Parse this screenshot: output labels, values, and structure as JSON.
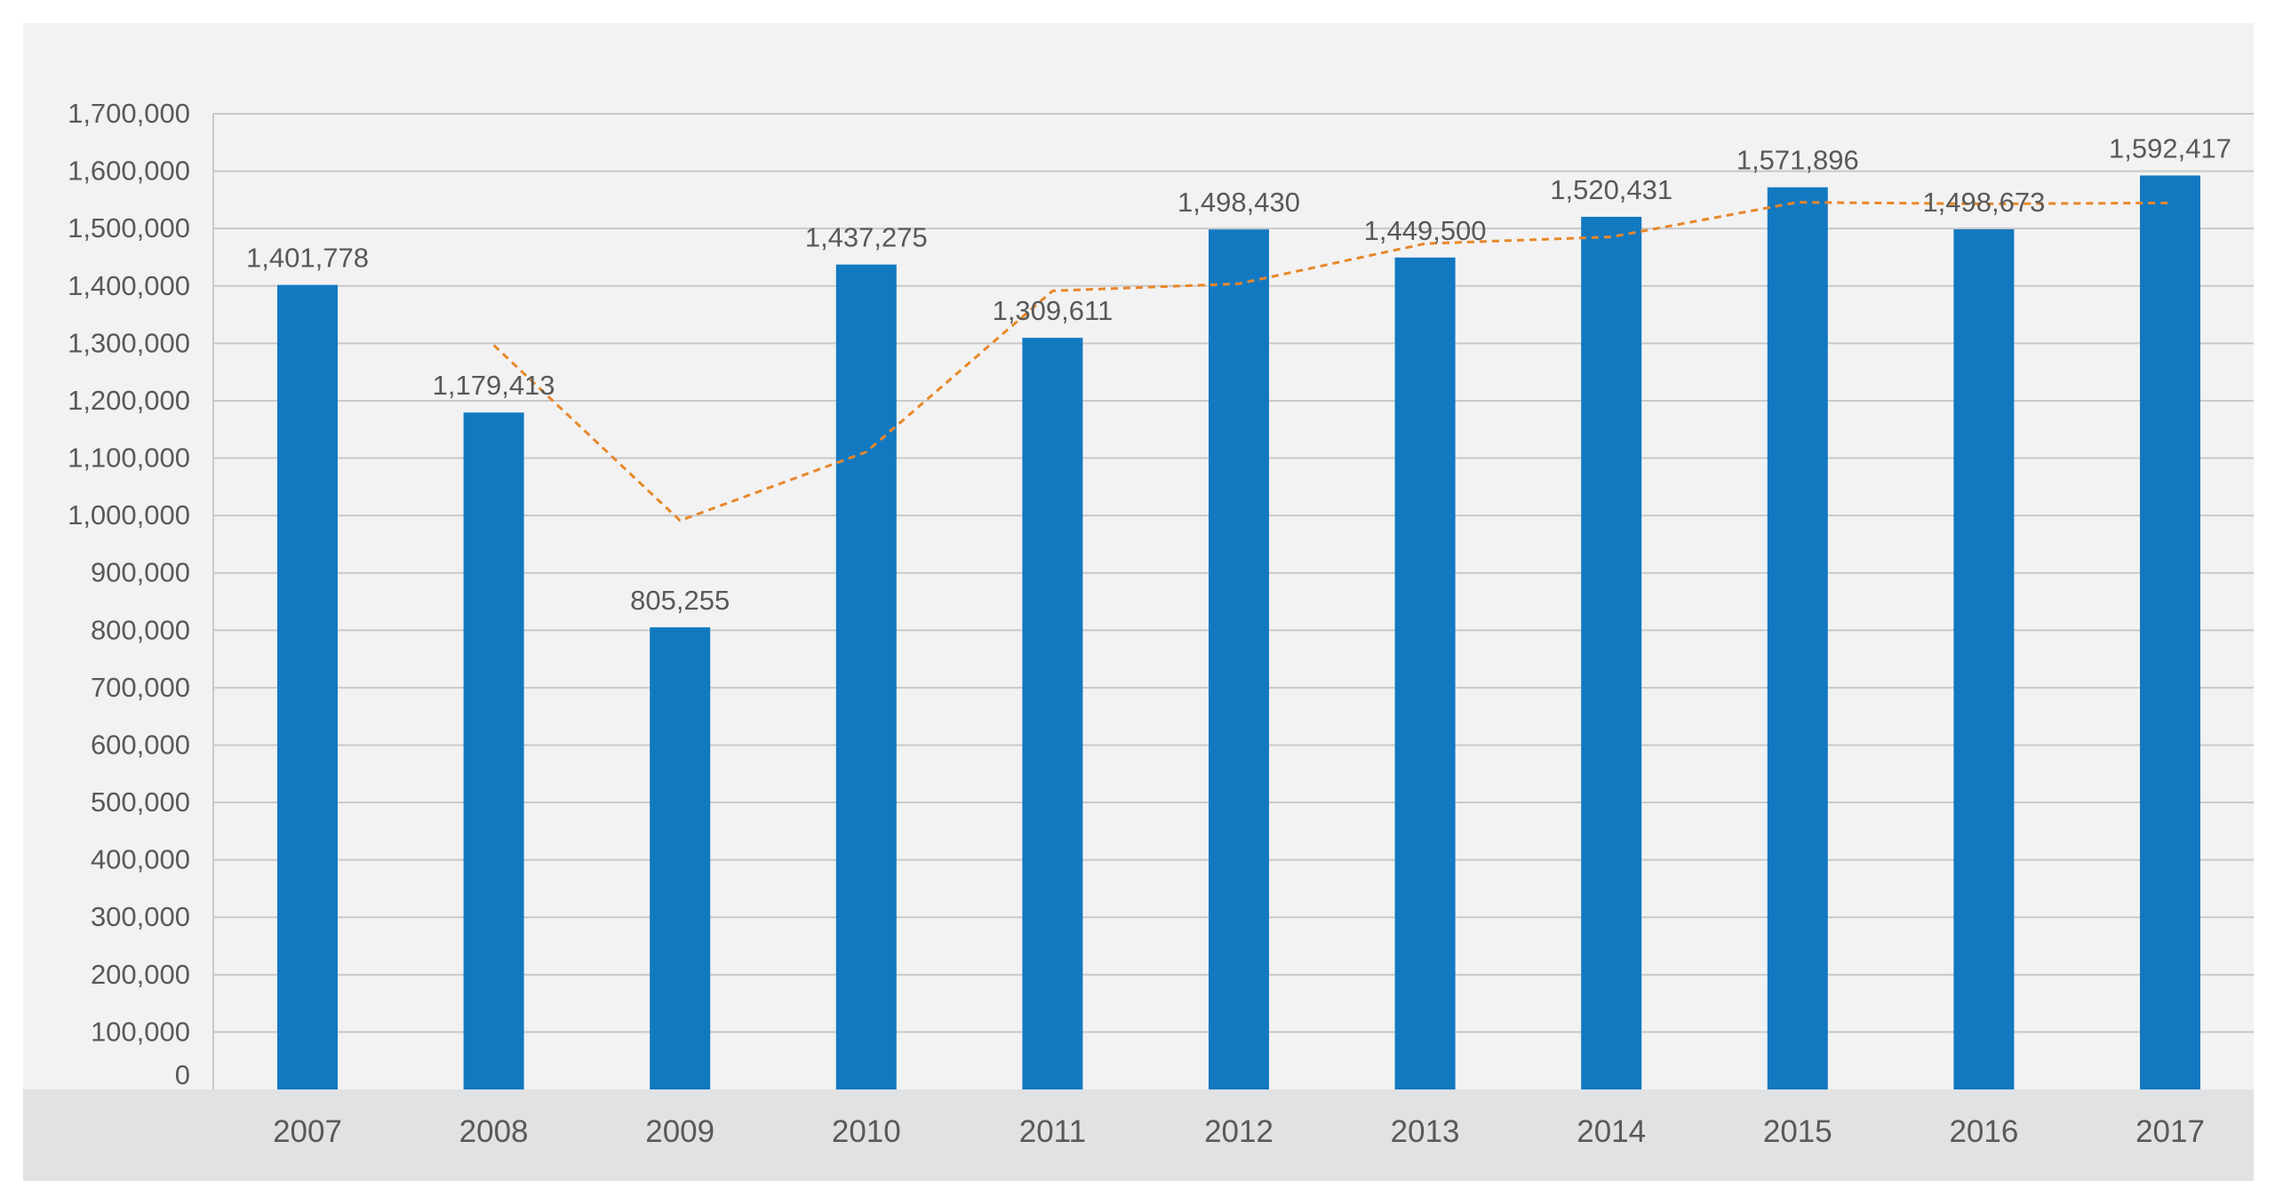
{
  "chart_data": {
    "type": "bar",
    "categories": [
      "2007",
      "2008",
      "2009",
      "2010",
      "2011",
      "2012",
      "2013",
      "2014",
      "2015",
      "2016",
      "2017"
    ],
    "series": [
      {
        "type": "bar",
        "values": [
          1401778,
          1179413,
          805255,
          1437275,
          1309611,
          1498430,
          1449500,
          1520431,
          1571896,
          1498673,
          1592417
        ],
        "data_labels": [
          "1,401,778",
          "1,179,413",
          "805,255",
          "1,437,275",
          "1,309,611",
          "1,498,430",
          "1,449,500",
          "1,520,431",
          "1,571,896",
          "1,498,673",
          "1,592,417"
        ],
        "color": "#1279c1"
      },
      {
        "type": "line",
        "style": "dashed",
        "values": [
          null,
          1296815,
          991196,
          1110718,
          1391443,
          1403854,
          1473707,
          1485480,
          1545767,
          1542946,
          1544640
        ],
        "color": "#e8872a"
      }
    ],
    "ylim": [
      0,
      1700000
    ],
    "yticks": [
      0,
      100000,
      200000,
      300000,
      400000,
      500000,
      600000,
      700000,
      800000,
      900000,
      1000000,
      1100000,
      1200000,
      1300000,
      1400000,
      1500000,
      1600000,
      1700000
    ],
    "ytick_labels": [
      "0",
      "100,000",
      "200,000",
      "300,000",
      "400,000",
      "500,000",
      "600,000",
      "700,000",
      "800,000",
      "900,000",
      "1,000,000",
      "1,100,000",
      "1,200,000",
      "1,300,000",
      "1,400,000",
      "1,500,000",
      "1,600,000",
      "1,700,000"
    ],
    "grid": true,
    "legend": "none",
    "colors": {
      "panel_bg": "#f2f2f2",
      "axis_band": "#e1e2e4",
      "gridline": "#c9c9c9",
      "text": "#595959"
    }
  }
}
